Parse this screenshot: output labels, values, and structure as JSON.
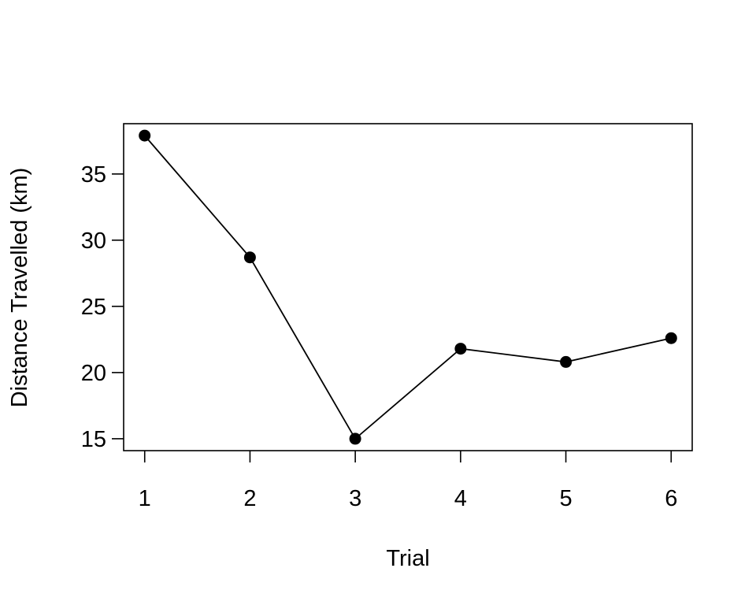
{
  "chart_data": {
    "type": "line",
    "title": "",
    "xlabel": "Trial",
    "ylabel": "Distance Travelled (km)",
    "x": [
      1,
      2,
      3,
      4,
      5,
      6
    ],
    "x_ticks": [
      1,
      2,
      3,
      4,
      5,
      6
    ],
    "y_ticks": [
      15,
      20,
      25,
      30,
      35
    ],
    "xlim": [
      0.8,
      6.2
    ],
    "ylim": [
      14.1,
      38.8
    ],
    "series": [
      {
        "values": [
          37.9,
          28.7,
          15.0,
          21.8,
          20.8,
          22.6
        ],
        "color": "#000000",
        "marker": "filled-circle"
      }
    ],
    "grid": false,
    "legend": "none"
  }
}
